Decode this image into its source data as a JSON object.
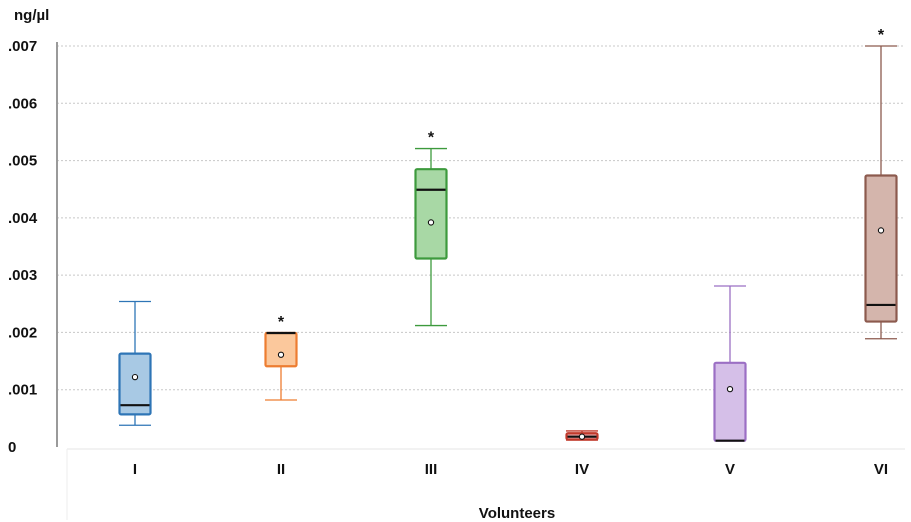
{
  "chart_data": {
    "type": "boxplot",
    "ylabel": "ng/µl",
    "xlabel": "Volunteers",
    "ylim": [
      0,
      0.007
    ],
    "yticks": [
      0,
      0.001,
      0.002,
      0.003,
      0.004,
      0.005,
      0.006,
      0.007
    ],
    "ytick_labels": [
      "0",
      ".001",
      ".002",
      ".003",
      ".004",
      ".005",
      ".006",
      ".007"
    ],
    "grid": true,
    "categories": [
      "I",
      "II",
      "III",
      "IV",
      "V",
      "VI"
    ],
    "boxes": [
      {
        "name": "I",
        "whisker_low": 0.00038,
        "q1": 0.00057,
        "median": 0.00073,
        "q3": 0.00163,
        "whisker_high": 0.00254,
        "mean": 0.00122,
        "outlier_marker": false,
        "color": "#2e75b6",
        "fill": "#a8c9e4"
      },
      {
        "name": "II",
        "whisker_low": 0.00082,
        "q1": 0.00141,
        "median": 0.00199,
        "q3": 0.00199,
        "whisker_high": 0.00199,
        "mean": 0.00161,
        "outlier_marker": true,
        "color": "#ed7d31",
        "fill": "#fbc89c"
      },
      {
        "name": "III",
        "whisker_low": 0.00212,
        "q1": 0.00329,
        "median": 0.00449,
        "q3": 0.00485,
        "whisker_high": 0.00521,
        "mean": 0.00392,
        "outlier_marker": true,
        "color": "#3d9a3d",
        "fill": "#a8d8a5"
      },
      {
        "name": "IV",
        "whisker_low": 0.00012,
        "q1": 0.00013,
        "median": 0.00018,
        "q3": 0.00024,
        "whisker_high": 0.00028,
        "mean": 0.00018,
        "outlier_marker": false,
        "color": "#c0392b",
        "fill": "#e8a0a0"
      },
      {
        "name": "V",
        "whisker_low": 0.00011,
        "q1": 0.00011,
        "median": 0.00011,
        "q3": 0.00147,
        "whisker_high": 0.00281,
        "mean": 0.00101,
        "outlier_marker": false,
        "color": "#9b6fc4",
        "fill": "#d5bfe8"
      },
      {
        "name": "VI",
        "whisker_low": 0.00189,
        "q1": 0.00219,
        "median": 0.00248,
        "q3": 0.00474,
        "whisker_high": 0.007,
        "mean": 0.00378,
        "outlier_marker": true,
        "color": "#8c5a4e",
        "fill": "#d4b5ac"
      }
    ],
    "outlier_symbol": "*"
  }
}
